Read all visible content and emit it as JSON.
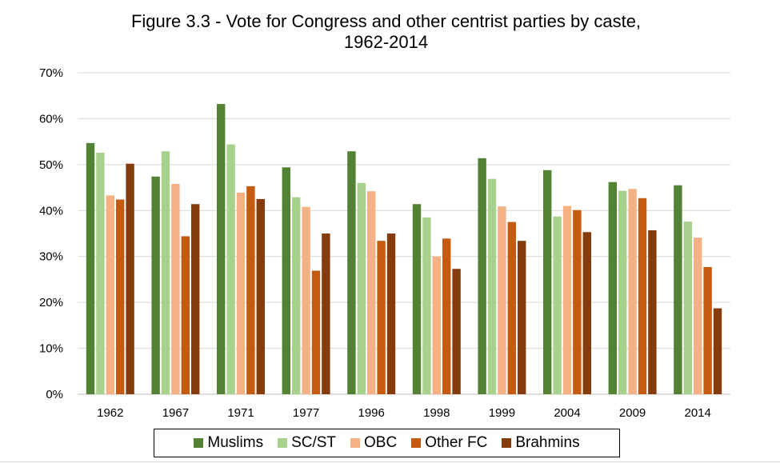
{
  "chart_data": {
    "type": "bar",
    "title_lines": [
      "Figure 3.3 - Vote for Congress and other centrist parties by caste,",
      "1962-2014"
    ],
    "categories": [
      "1962",
      "1967",
      "1971",
      "1977",
      "1996",
      "1998",
      "1999",
      "2004",
      "2009",
      "2014"
    ],
    "ylim": [
      0,
      70
    ],
    "yticks": [
      "0%",
      "10%",
      "20%",
      "30%",
      "40%",
      "50%",
      "60%",
      "70%"
    ],
    "grid": true,
    "legend_position": "bottom",
    "series": [
      {
        "name": "Muslims",
        "color": "#548235",
        "values": [
          54.7,
          47.4,
          63.2,
          49.4,
          52.9,
          41.4,
          51.4,
          48.8,
          46.2,
          45.5
        ]
      },
      {
        "name": "SC/ST",
        "color": "#a9d18e",
        "values": [
          52.6,
          52.9,
          54.4,
          42.9,
          46.0,
          38.5,
          46.9,
          38.7,
          44.3,
          37.6
        ]
      },
      {
        "name": "OBC",
        "color": "#f4b183",
        "values": [
          43.3,
          45.8,
          43.9,
          40.8,
          44.2,
          30.0,
          40.9,
          41.0,
          44.7,
          34.1
        ]
      },
      {
        "name": "Other FC",
        "color": "#c55a11",
        "values": [
          42.4,
          34.4,
          45.3,
          26.9,
          33.4,
          33.9,
          37.5,
          40.1,
          42.7,
          27.7
        ]
      },
      {
        "name": "Brahmins",
        "color": "#843c0c",
        "values": [
          50.2,
          41.4,
          42.5,
          35.0,
          35.0,
          27.3,
          33.4,
          35.3,
          35.7,
          18.7
        ]
      }
    ]
  }
}
